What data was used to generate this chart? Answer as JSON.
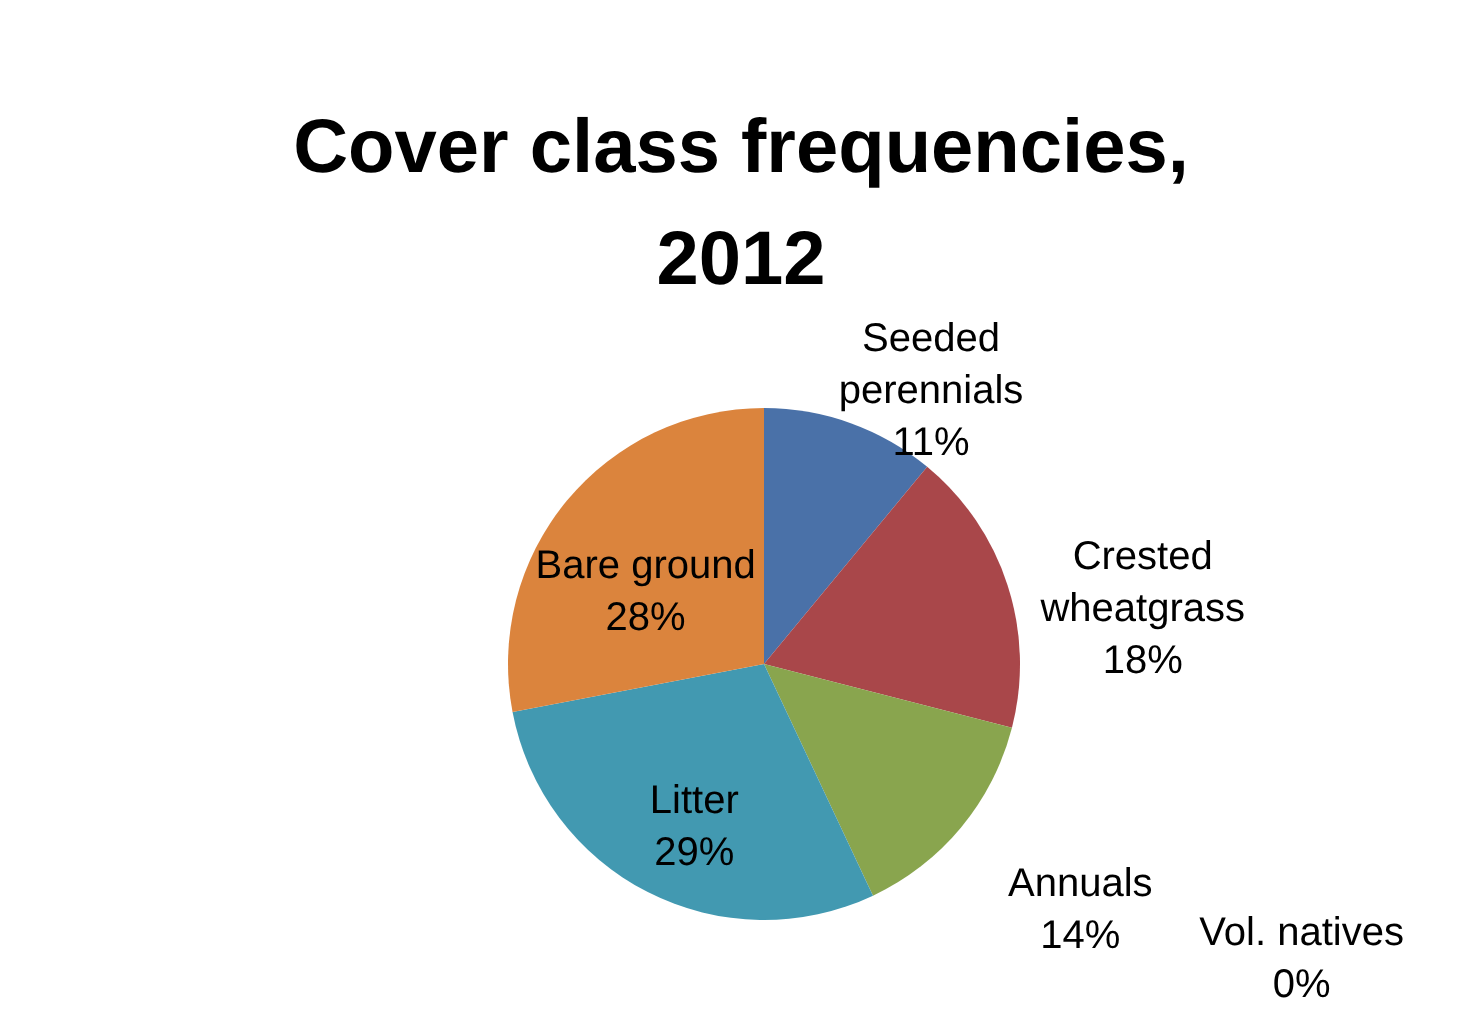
{
  "chart_data": {
    "type": "pie",
    "title": "Cover class frequencies, 2012",
    "categories": [
      "Seeded perennials",
      "Crested wheatgrass",
      "Annuals",
      "Vol. natives",
      "Litter",
      "Bare ground"
    ],
    "values": [
      11,
      18,
      14,
      0,
      29,
      28
    ],
    "colors": [
      "#4a71a8",
      "#a9474a",
      "#89a54e",
      "#7c5f9f",
      "#4299b1",
      "#db843d"
    ],
    "value_labels": [
      "11%",
      "18%",
      "14%",
      "0%",
      "29%",
      "28%"
    ],
    "legend": false
  }
}
